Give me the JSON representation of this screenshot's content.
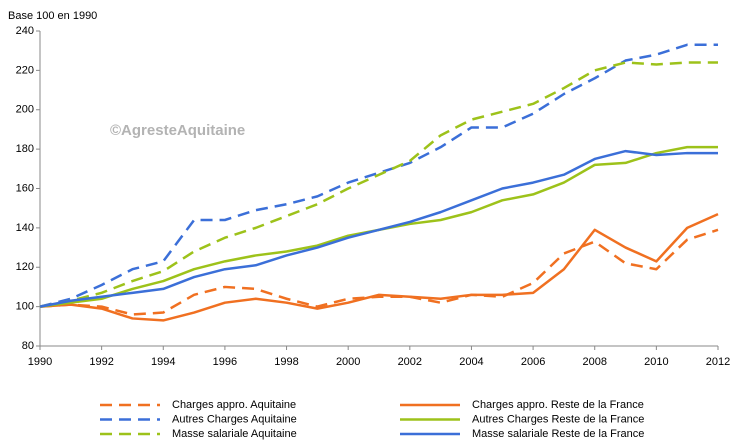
{
  "chart_data": {
    "type": "line",
    "ylabel": "Base 100 en 1990",
    "annotation": "©AgresteAquitaine",
    "x": [
      1990,
      1991,
      1992,
      1993,
      1994,
      1995,
      1996,
      1997,
      1998,
      1999,
      2000,
      2001,
      2002,
      2003,
      2004,
      2005,
      2006,
      2007,
      2008,
      2009,
      2010,
      2011,
      2012
    ],
    "xlim": [
      1990,
      2012
    ],
    "xticks": [
      1990,
      1992,
      1994,
      1996,
      1998,
      2000,
      2002,
      2004,
      2006,
      2008,
      2010,
      2012
    ],
    "ylim": [
      80,
      240
    ],
    "yticks": [
      80,
      100,
      120,
      140,
      160,
      180,
      200,
      220,
      240
    ],
    "grid": false,
    "legend": "bottom",
    "series": [
      {
        "name": "Charges appro. Aquitaine",
        "color": "#f07021",
        "dash": true,
        "values": [
          100,
          101,
          100,
          96,
          97,
          106,
          110,
          109,
          104,
          100,
          104,
          105,
          105,
          102,
          106,
          105,
          112,
          127,
          133,
          122,
          119,
          134,
          139
        ]
      },
      {
        "name": "Charges appro. Reste de la France",
        "color": "#f07021",
        "dash": false,
        "values": [
          100,
          101,
          99,
          94,
          93,
          97,
          102,
          104,
          102,
          99,
          102,
          106,
          105,
          104,
          106,
          106,
          107,
          119,
          139,
          130,
          123,
          140,
          147
        ]
      },
      {
        "name": "Autres Charges Aquitaine",
        "color": "#3b6fd8",
        "dash": true,
        "values": [
          100,
          104,
          111,
          119,
          123,
          144,
          144,
          149,
          152,
          156,
          163,
          168,
          173,
          181,
          191,
          191,
          198,
          208,
          216,
          225,
          228,
          233,
          233
        ]
      },
      {
        "name": "Autres Charges Reste de la France",
        "color": "#9dc21a",
        "dash": false,
        "values": [
          100,
          102,
          104,
          109,
          113,
          119,
          123,
          126,
          128,
          131,
          136,
          139,
          142,
          144,
          148,
          154,
          157,
          163,
          172,
          173,
          178,
          181,
          181
        ]
      },
      {
        "name": "Masse salariale Aquitaine",
        "color": "#9dc21a",
        "dash": true,
        "values": [
          100,
          103,
          107,
          113,
          118,
          128,
          135,
          140,
          146,
          152,
          160,
          167,
          174,
          187,
          195,
          199,
          203,
          211,
          220,
          224,
          223,
          224,
          224
        ]
      },
      {
        "name": "Masse salariale Reste de la France",
        "color": "#3b6fd8",
        "dash": false,
        "values": [
          100,
          103,
          105,
          107,
          109,
          115,
          119,
          121,
          126,
          130,
          135,
          139,
          143,
          148,
          154,
          160,
          163,
          167,
          175,
          179,
          177,
          178,
          178
        ]
      }
    ]
  }
}
